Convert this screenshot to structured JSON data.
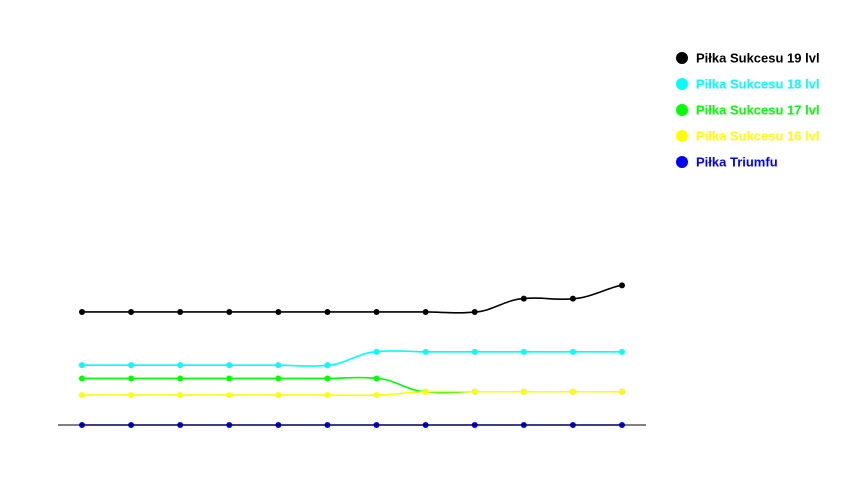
{
  "chart_data": {
    "type": "line",
    "title": "",
    "xlabel": "",
    "ylabel": "",
    "x": [
      1,
      2,
      3,
      4,
      5,
      6,
      7,
      8,
      9,
      10,
      11,
      12
    ],
    "ylim": [
      0,
      35
    ],
    "grid": false,
    "legend_position": "top-right",
    "smooth": true,
    "series": [
      {
        "name": "Piłka Sukcesu 19 lvl",
        "color": "#000000",
        "values": [
          17,
          17,
          17,
          17,
          17,
          17,
          17,
          17,
          17,
          19,
          19,
          21
        ]
      },
      {
        "name": "Piłka Sukcesu 18 lvl",
        "color": "#00ffff",
        "values": [
          9,
          9,
          9,
          9,
          9,
          9,
          11,
          11,
          11,
          11,
          11,
          11
        ]
      },
      {
        "name": "Piłka Sukcesu 17 lvl",
        "color": "#00ff00",
        "values": [
          7,
          7,
          7,
          7,
          7,
          7,
          7,
          5,
          5,
          5,
          5,
          5
        ]
      },
      {
        "name": "Piłka Sukcesu 16 lvl",
        "color": "#ffff00",
        "values": [
          4.5,
          4.5,
          4.5,
          4.5,
          4.5,
          4.5,
          4.5,
          5,
          5,
          5,
          5,
          5
        ]
      },
      {
        "name": "Piłka Triumfu",
        "color": "#0000ff",
        "values": [
          0,
          0,
          0,
          0,
          0,
          0,
          0,
          0,
          0,
          0,
          0,
          0
        ]
      }
    ]
  }
}
